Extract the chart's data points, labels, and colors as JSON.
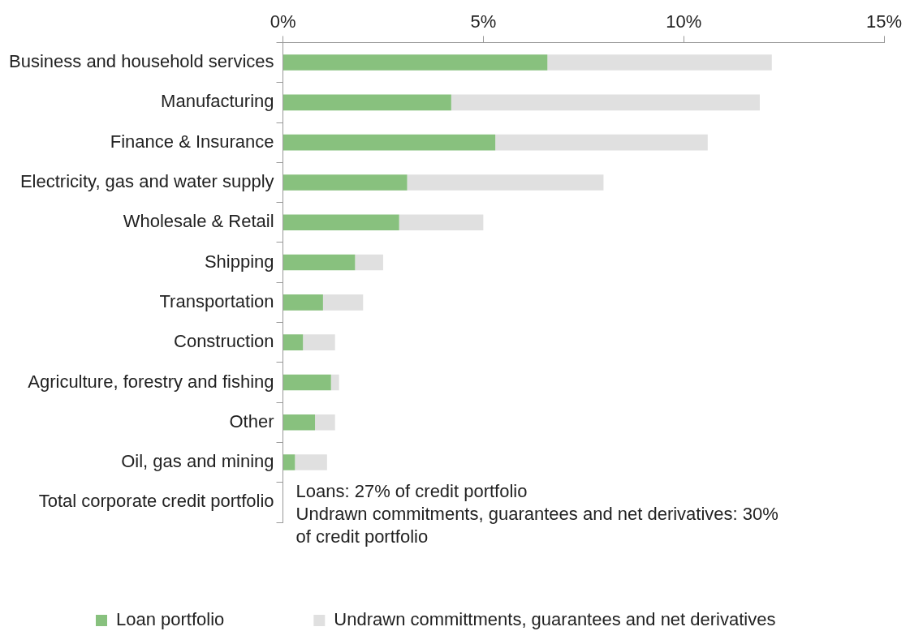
{
  "chart_data": {
    "type": "bar",
    "orientation": "horizontal",
    "stacked": true,
    "categories": [
      "Business and household services",
      "Manufacturing",
      "Finance & Insurance",
      "Electricity, gas and water supply",
      "Wholesale & Retail",
      "Shipping",
      "Transportation",
      "Construction",
      "Agriculture, forestry and fishing",
      "Other",
      "Oil, gas and mining",
      "Total corporate credit portfolio"
    ],
    "series": [
      {
        "name": "Loan portfolio",
        "color": "#88c17e",
        "values": [
          6.6,
          4.2,
          5.3,
          3.1,
          2.9,
          1.8,
          1.0,
          0.5,
          1.2,
          0.8,
          0.3,
          null
        ]
      },
      {
        "name": "Undrawn committments, guarantees and net derivatives",
        "color": "#e0e0e0",
        "values": [
          5.6,
          7.7,
          5.3,
          4.9,
          2.1,
          0.7,
          1.0,
          0.8,
          0.2,
          0.5,
          0.8,
          null
        ]
      }
    ],
    "xlim": [
      0,
      15
    ],
    "xticks": [
      {
        "value": 0,
        "label": "0%"
      },
      {
        "value": 5,
        "label": "5%"
      },
      {
        "value": 10,
        "label": "10%"
      },
      {
        "value": 15,
        "label": "15%"
      }
    ],
    "annotations": [
      "Loans: 27% of credit portfolio",
      "Undrawn commitments, guarantees and net derivatives: 30% of credit portfolio"
    ],
    "grid": false,
    "legend": "bottom left"
  }
}
